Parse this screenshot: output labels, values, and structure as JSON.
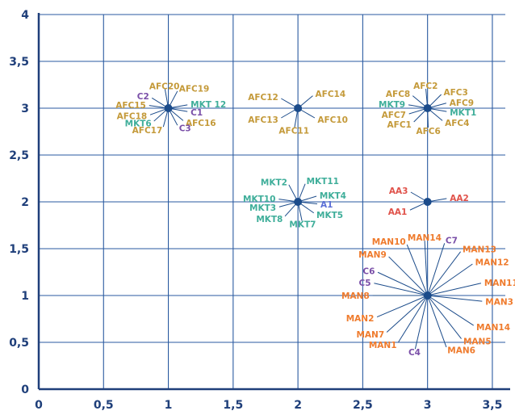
{
  "chart_data": {
    "type": "scatter",
    "title": "",
    "xlabel": "",
    "ylabel": "",
    "xlim": [
      0,
      3.6
    ],
    "ylim": [
      0,
      4
    ],
    "grid": true,
    "x_ticks": [
      "0",
      "0,5",
      "1",
      "1,5",
      "2",
      "2,5",
      "3",
      "3,5"
    ],
    "y_ticks": [
      "0",
      "0,5",
      "1",
      "1,5",
      "2",
      "2,5",
      "3",
      "3,5",
      "4"
    ],
    "colors": {
      "axis": "#1f3f7a",
      "grid": "#2a5aa0",
      "point": "#1b4b8a",
      "AFC": "#c49a3a",
      "MKT": "#3fae9a",
      "C": "#7a4fa8",
      "A": "#5b6fd6",
      "AA": "#e0524a",
      "MAN": "#ef7b2d"
    },
    "clusters": [
      {
        "x": 1,
        "y": 3,
        "labels": [
          {
            "text": "AFC20",
            "group": "AFC",
            "angle": 100
          },
          {
            "text": "AFC19",
            "group": "AFC",
            "angle": 62
          },
          {
            "text": "C2",
            "group": "C",
            "angle": 148
          },
          {
            "text": "AFC15",
            "group": "AFC",
            "angle": 172
          },
          {
            "text": "MKT 12",
            "group": "MKT",
            "angle": 10
          },
          {
            "text": "C1",
            "group": "C",
            "angle": -10
          },
          {
            "text": "AFC18",
            "group": "AFC",
            "angle": 200
          },
          {
            "text": "AFC16",
            "group": "AFC",
            "angle": -40
          },
          {
            "text": "MKT6",
            "group": "MKT",
            "angle": 222
          },
          {
            "text": "AFC17",
            "group": "AFC",
            "angle": 255
          },
          {
            "text": "C3",
            "group": "C",
            "angle": -62
          }
        ]
      },
      {
        "x": 2,
        "y": 3,
        "labels": [
          {
            "text": "AFC12",
            "group": "AFC",
            "angle": 150
          },
          {
            "text": "AFC14",
            "group": "AFC",
            "angle": 40
          },
          {
            "text": "AFC13",
            "group": "AFC",
            "angle": 210
          },
          {
            "text": "AFC10",
            "group": "AFC",
            "angle": -30
          },
          {
            "text": "AFC11",
            "group": "AFC",
            "angle": 260
          }
        ]
      },
      {
        "x": 3,
        "y": 3,
        "labels": [
          {
            "text": "AFC2",
            "group": "AFC",
            "angle": 95
          },
          {
            "text": "AFC3",
            "group": "AFC",
            "angle": 45
          },
          {
            "text": "AFC8",
            "group": "AFC",
            "angle": 140
          },
          {
            "text": "AFC9",
            "group": "AFC",
            "angle": 15
          },
          {
            "text": "MKT9",
            "group": "MKT",
            "angle": 170
          },
          {
            "text": "MKT1",
            "group": "MKT",
            "angle": -10
          },
          {
            "text": "AFC7",
            "group": "AFC",
            "angle": 197
          },
          {
            "text": "AFC4",
            "group": "AFC",
            "angle": -40
          },
          {
            "text": "AFC1",
            "group": "AFC",
            "angle": 225
          },
          {
            "text": "AFC6",
            "group": "AFC",
            "angle": 272
          }
        ]
      },
      {
        "x": 2,
        "y": 2,
        "labels": [
          {
            "text": "MKT2",
            "group": "MKT",
            "angle": 118
          },
          {
            "text": "MKT11",
            "group": "MKT",
            "angle": 68
          },
          {
            "text": "MKT10",
            "group": "MKT",
            "angle": 172
          },
          {
            "text": "MKT4",
            "group": "MKT",
            "angle": 17
          },
          {
            "text": "MKT3",
            "group": "MKT",
            "angle": 195
          },
          {
            "text": "A1",
            "group": "A",
            "angle": -6
          },
          {
            "text": "MKT8",
            "group": "MKT",
            "angle": 228
          },
          {
            "text": "MKT5",
            "group": "MKT",
            "angle": -35
          },
          {
            "text": "MKT7",
            "group": "MKT",
            "angle": -78
          }
        ]
      },
      {
        "x": 3,
        "y": 2,
        "labels": [
          {
            "text": "AA3",
            "group": "AA",
            "angle": 150
          },
          {
            "text": "AA2",
            "group": "AA",
            "angle": 10
          },
          {
            "text": "AA1",
            "group": "AA",
            "angle": 205
          }
        ]
      },
      {
        "x": 3,
        "y": 1,
        "labels": [
          {
            "text": "MAN10",
            "group": "MAN",
            "angle": 112
          },
          {
            "text": "MAN14",
            "group": "MAN",
            "angle": 93
          },
          {
            "text": "C7",
            "group": "C",
            "angle": 72
          },
          {
            "text": "MAN13",
            "group": "MAN",
            "angle": 53
          },
          {
            "text": "MAN9",
            "group": "MAN",
            "angle": 135
          },
          {
            "text": "MAN12",
            "group": "MAN",
            "angle": 35
          },
          {
            "text": "C6",
            "group": "C",
            "angle": 155
          },
          {
            "text": "MAN11",
            "group": "MAN",
            "angle": 13
          },
          {
            "text": "C5",
            "group": "C",
            "angle": 167
          },
          {
            "text": "MAN8",
            "group": "MAN",
            "angle": 180
          },
          {
            "text": "MAN3",
            "group": "MAN",
            "angle": -6
          },
          {
            "text": "MAN2",
            "group": "MAN",
            "angle": 203
          },
          {
            "text": "MAN14",
            "group": "MAN",
            "angle": -33
          },
          {
            "text": "MAN7",
            "group": "MAN",
            "angle": 222
          },
          {
            "text": "MAN5",
            "group": "MAN",
            "angle": -52
          },
          {
            "text": "MAN1",
            "group": "MAN",
            "angle": 238
          },
          {
            "text": "MAN6",
            "group": "MAN",
            "angle": -70
          },
          {
            "text": "C4",
            "group": "C",
            "angle": 257
          }
        ]
      }
    ]
  }
}
